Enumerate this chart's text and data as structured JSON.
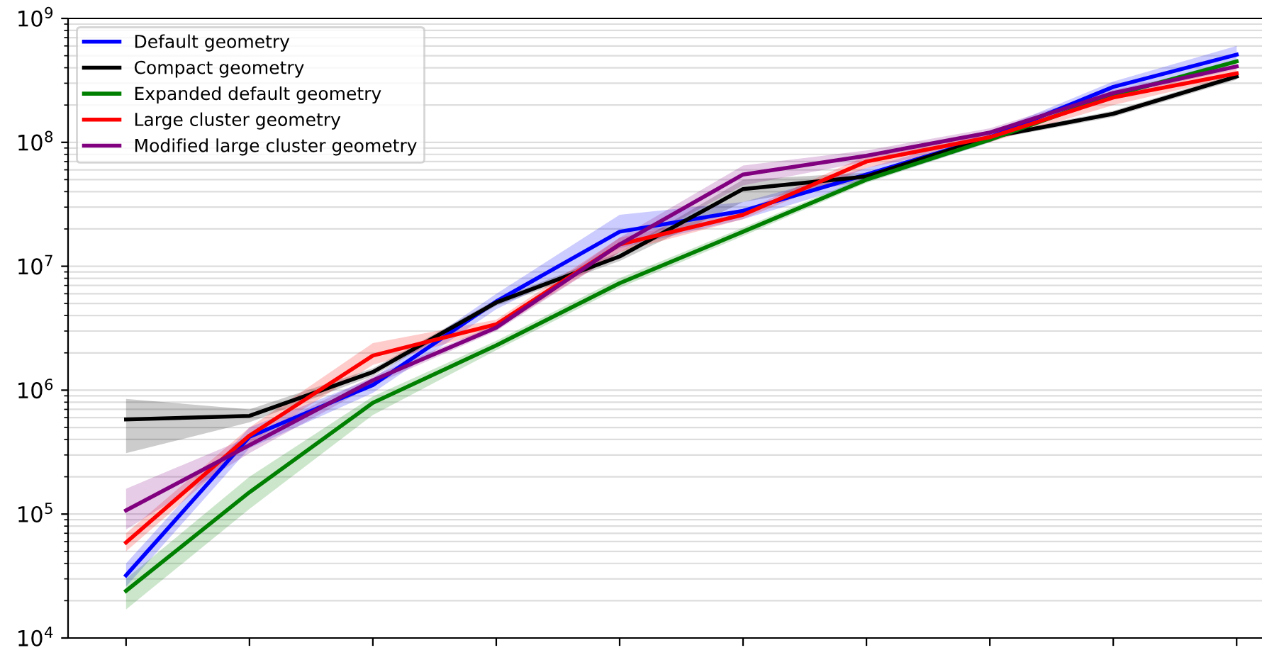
{
  "chart_data": {
    "type": "line",
    "log": "y",
    "grid": "y",
    "legend": "top left",
    "tick_labels": "y",
    "categories": [
      null,
      null,
      null,
      null,
      null,
      null,
      null,
      null,
      null,
      null
    ],
    "ylim": [
      10000,
      1000000000
    ],
    "yticks": [
      {
        "value": 10000,
        "label": "10$^{4}$"
      },
      {
        "value": 100000,
        "label": "10$^{5}$"
      },
      {
        "value": 1000000,
        "label": "10$^{6}$"
      },
      {
        "value": 10000000,
        "label": "10$^{7}$"
      },
      {
        "value": 100000000,
        "label": "10$^{8}$"
      },
      {
        "value": 1000000000,
        "label": "10$^{9}$"
      }
    ],
    "series": [
      {
        "name": "Default geometry",
        "color": "#0000ff",
        "values": [
          32000,
          420000,
          1100000,
          5200000,
          19000000,
          28000000,
          55000000,
          110000000,
          280000000,
          510000000
        ],
        "lower": [
          26000,
          340000,
          950000,
          4500000,
          14000000,
          24000000,
          48000000,
          100000000,
          250000000,
          450000000
        ],
        "upper": [
          40000,
          500000,
          1250000,
          6000000,
          26000000,
          33000000,
          62000000,
          120000000,
          310000000,
          600000000
        ]
      },
      {
        "name": "Compact geometry",
        "color": "#000000",
        "values": [
          580000,
          620000,
          1400000,
          5100000,
          12000000,
          42000000,
          53000000,
          110000000,
          170000000,
          340000000
        ],
        "lower": [
          310000,
          550000,
          1300000,
          4800000,
          11000000,
          33000000,
          49000000,
          105000000,
          160000000,
          320000000
        ],
        "upper": [
          850000,
          700000,
          1500000,
          5400000,
          13000000,
          50000000,
          57000000,
          115000000,
          180000000,
          360000000
        ]
      },
      {
        "name": "Expanded default geometry",
        "color": "#008000",
        "values": [
          24000,
          150000,
          790000,
          2300000,
          7300000,
          19000000,
          50000000,
          105000000,
          240000000,
          450000000
        ],
        "lower": [
          17000,
          110000,
          630000,
          2100000,
          6700000,
          17500000,
          47000000,
          100000000,
          230000000,
          430000000
        ],
        "upper": [
          30000,
          200000,
          890000,
          2500000,
          8000000,
          20500000,
          53000000,
          110000000,
          250000000,
          470000000
        ]
      },
      {
        "name": "Large cluster geometry",
        "color": "#ff0000",
        "values": [
          59000,
          430000,
          1900000,
          3400000,
          15000000,
          26000000,
          70000000,
          110000000,
          230000000,
          360000000
        ],
        "lower": [
          50000,
          370000,
          1600000,
          3100000,
          13000000,
          24000000,
          62000000,
          100000000,
          200000000,
          340000000
        ],
        "upper": [
          70000,
          500000,
          2400000,
          3700000,
          17000000,
          28000000,
          78000000,
          120000000,
          260000000,
          390000000
        ]
      },
      {
        "name": "Modified large cluster geometry",
        "color": "#800080",
        "values": [
          107000,
          360000,
          1200000,
          3200000,
          15000000,
          55000000,
          78000000,
          120000000,
          250000000,
          410000000
        ],
        "lower": [
          75000,
          310000,
          1100000,
          3000000,
          13000000,
          45000000,
          70000000,
          110000000,
          235000000,
          390000000
        ],
        "upper": [
          160000,
          420000,
          1300000,
          3400000,
          17000000,
          65000000,
          86000000,
          130000000,
          265000000,
          430000000
        ]
      }
    ]
  }
}
